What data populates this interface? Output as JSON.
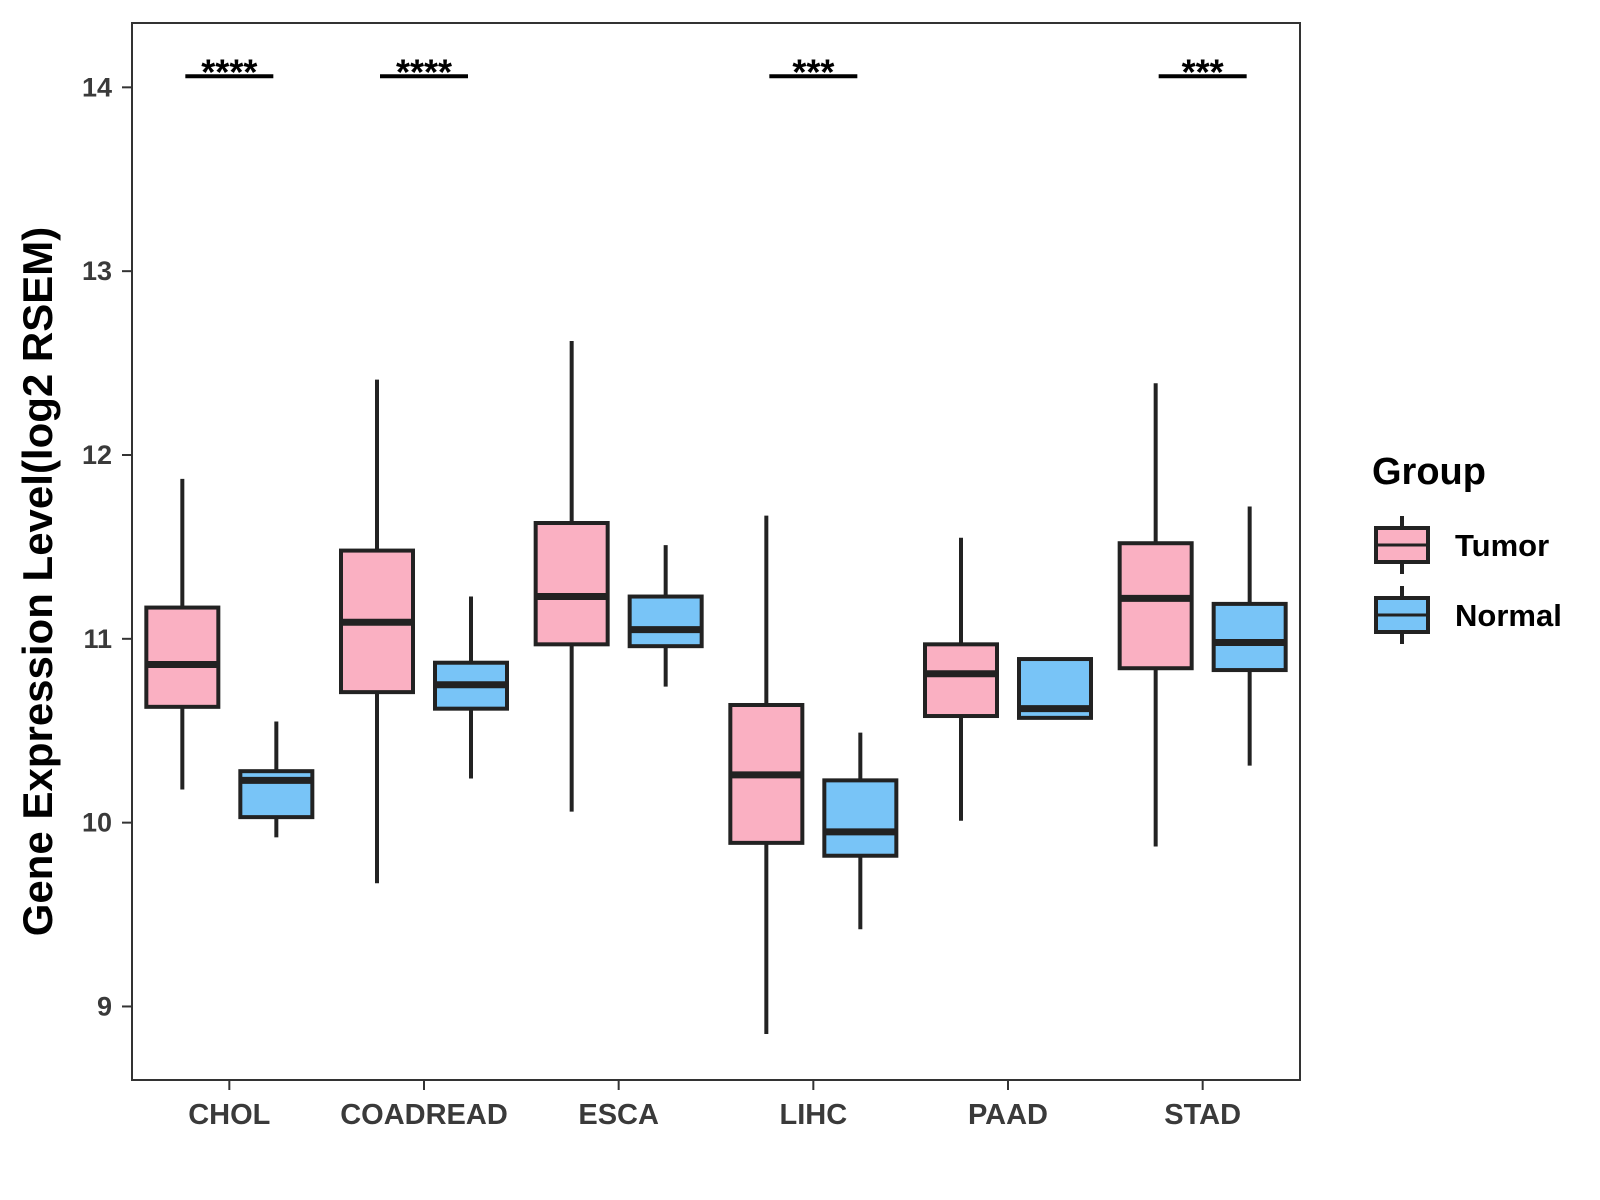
{
  "chart_data": {
    "type": "boxplot",
    "title": "",
    "xlabel": "",
    "ylabel": "Gene Expression Level(log2 RSEM)",
    "ylim": [
      8.6,
      14.35
    ],
    "yticks": [
      9,
      10,
      11,
      12,
      13,
      14
    ],
    "grid": false,
    "legend": {
      "title": "Group",
      "position": "right"
    },
    "categories": [
      "CHOL",
      "COADREAD",
      "ESCA",
      "LIHC",
      "PAAD",
      "STAD"
    ],
    "series": [
      {
        "name": "Tumor",
        "color": "#FAB0C2",
        "boxes": [
          {
            "whisker_low": 10.18,
            "q1": 10.63,
            "median": 10.86,
            "q3": 11.17,
            "whisker_high": 11.87
          },
          {
            "whisker_low": 9.67,
            "q1": 10.71,
            "median": 11.09,
            "q3": 11.48,
            "whisker_high": 12.41
          },
          {
            "whisker_low": 10.06,
            "q1": 10.97,
            "median": 11.23,
            "q3": 11.63,
            "whisker_high": 12.62
          },
          {
            "whisker_low": 8.85,
            "q1": 9.89,
            "median": 10.26,
            "q3": 10.64,
            "whisker_high": 11.67
          },
          {
            "whisker_low": 10.01,
            "q1": 10.58,
            "median": 10.81,
            "q3": 10.97,
            "whisker_high": 11.55
          },
          {
            "whisker_low": 9.87,
            "q1": 10.84,
            "median": 11.22,
            "q3": 11.52,
            "whisker_high": 12.39
          }
        ]
      },
      {
        "name": "Normal",
        "color": "#78C4F7",
        "boxes": [
          {
            "whisker_low": 9.92,
            "q1": 10.03,
            "median": 10.23,
            "q3": 10.28,
            "whisker_high": 10.55
          },
          {
            "whisker_low": 10.24,
            "q1": 10.62,
            "median": 10.75,
            "q3": 10.87,
            "whisker_high": 11.23
          },
          {
            "whisker_low": 10.74,
            "q1": 10.96,
            "median": 11.05,
            "q3": 11.23,
            "whisker_high": 11.51
          },
          {
            "whisker_low": 9.42,
            "q1": 9.82,
            "median": 9.95,
            "q3": 10.23,
            "whisker_high": 10.49
          },
          {
            "whisker_low": 10.57,
            "q1": 10.57,
            "median": 10.62,
            "q3": 10.89,
            "whisker_high": 10.89
          },
          {
            "whisker_low": 10.31,
            "q1": 10.83,
            "median": 10.98,
            "q3": 11.19,
            "whisker_high": 11.72
          }
        ]
      }
    ],
    "significance": [
      {
        "category": "CHOL",
        "label": "****"
      },
      {
        "category": "COADREAD",
        "label": "****"
      },
      {
        "category": "ESCA",
        "label": ""
      },
      {
        "category": "LIHC",
        "label": "***"
      },
      {
        "category": "PAAD",
        "label": ""
      },
      {
        "category": "STAD",
        "label": "***"
      }
    ],
    "significance_y": 14.06
  }
}
